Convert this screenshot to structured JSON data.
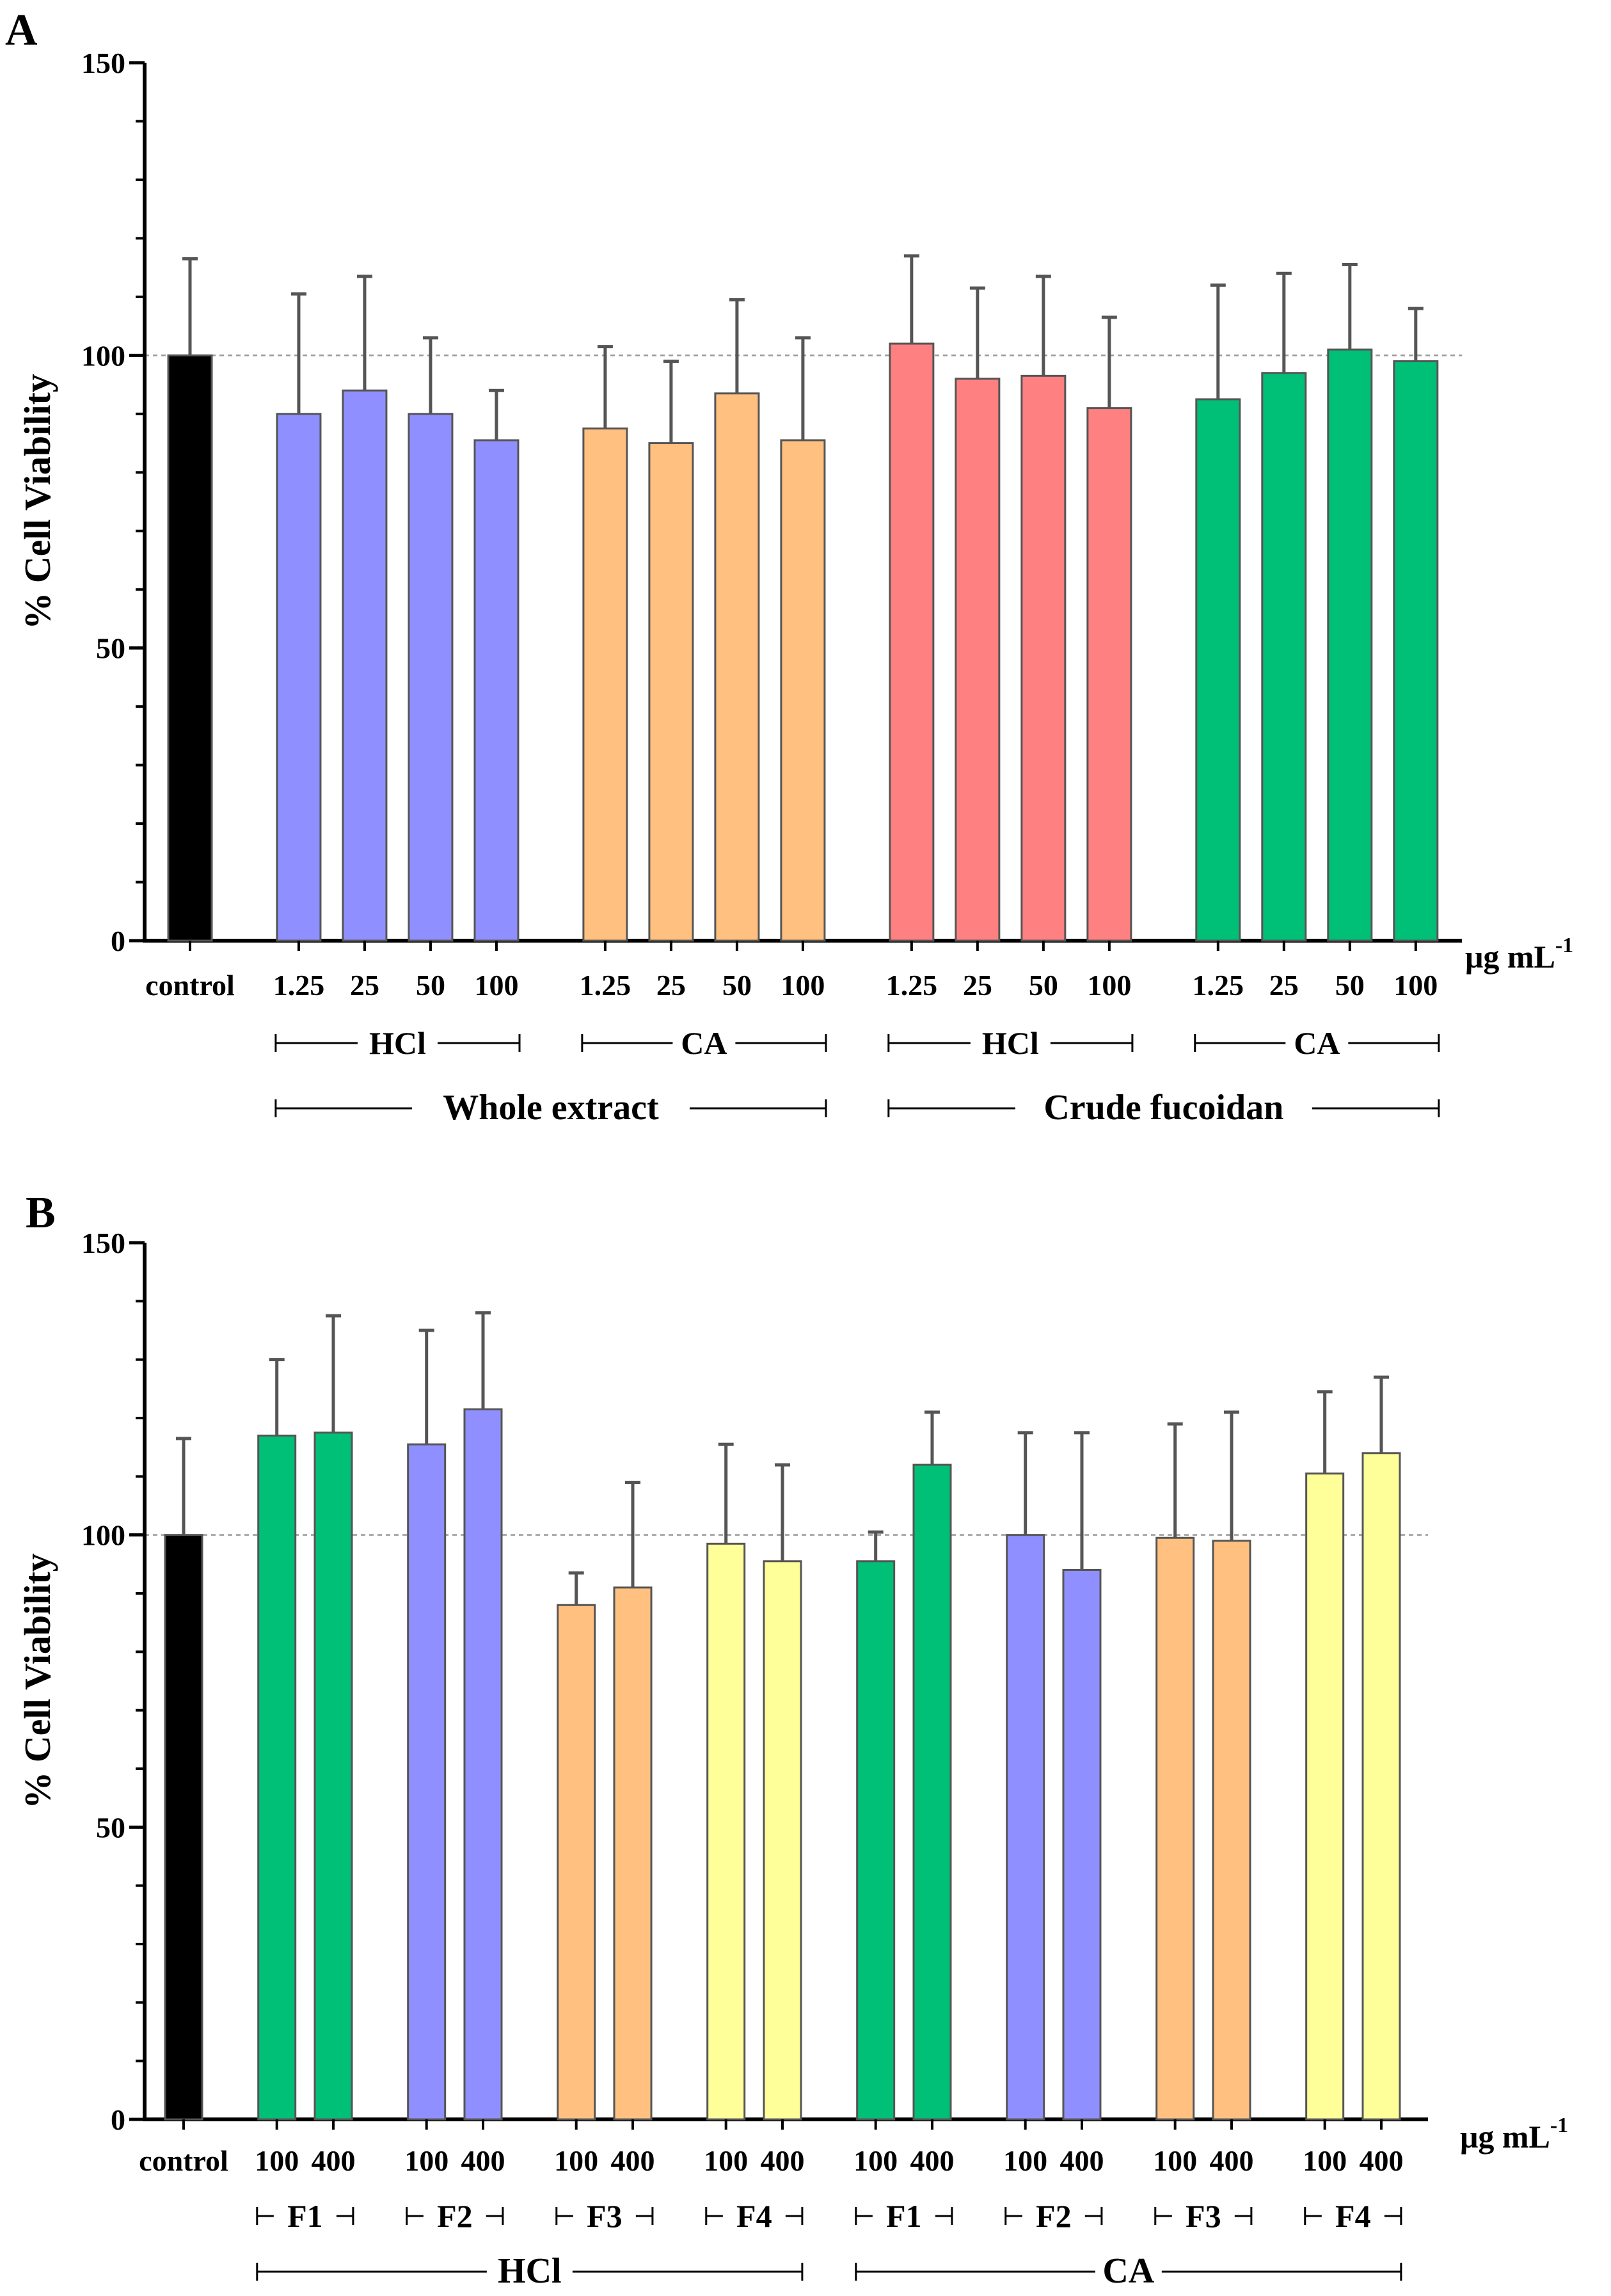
{
  "colors": {
    "black": "#000000",
    "blue": "#8F8FFF",
    "orange": "#FFC080",
    "red": "#FF8080",
    "green": "#00BF77",
    "yellow": "#FFFF99",
    "bar_edge": "#555555",
    "error_bar": "#555555",
    "reference_line": "#999999"
  },
  "chart_data": [
    {
      "panel": "A",
      "type": "bar",
      "ylabel": "% Cell Viability",
      "unit_label": "μg mL",
      "unit_superscript": "-1",
      "ylim": [
        0,
        150
      ],
      "yticks": [
        0,
        50,
        100,
        150
      ],
      "reference_line": 100,
      "bars": [
        {
          "label": "control",
          "value": 100,
          "error": 16.5,
          "color": "black",
          "slot": 0
        },
        {
          "label": "1.25",
          "value": 90,
          "error": 20.5,
          "color": "blue",
          "slot": 1.65
        },
        {
          "label": "25",
          "value": 94,
          "error": 19.5,
          "color": "blue",
          "slot": 2.65
        },
        {
          "label": "50",
          "value": 90,
          "error": 13,
          "color": "blue",
          "slot": 3.65
        },
        {
          "label": "100",
          "value": 85.5,
          "error": 8.5,
          "color": "blue",
          "slot": 4.65
        },
        {
          "label": "1.25",
          "value": 87.5,
          "error": 14,
          "color": "orange",
          "slot": 6.3
        },
        {
          "label": "25",
          "value": 85,
          "error": 14,
          "color": "orange",
          "slot": 7.3
        },
        {
          "label": "50",
          "value": 93.5,
          "error": 16,
          "color": "orange",
          "slot": 8.3
        },
        {
          "label": "100",
          "value": 85.5,
          "error": 17.5,
          "color": "orange",
          "slot": 9.3
        },
        {
          "label": "1.25",
          "value": 102,
          "error": 15,
          "color": "red",
          "slot": 10.95
        },
        {
          "label": "25",
          "value": 96,
          "error": 15.5,
          "color": "red",
          "slot": 11.95
        },
        {
          "label": "50",
          "value": 96.5,
          "error": 17,
          "color": "red",
          "slot": 12.95
        },
        {
          "label": "100",
          "value": 91,
          "error": 15.5,
          "color": "red",
          "slot": 13.95
        },
        {
          "label": "1.25",
          "value": 92.5,
          "error": 19.5,
          "color": "green",
          "slot": 15.6
        },
        {
          "label": "25",
          "value": 97,
          "error": 17,
          "color": "green",
          "slot": 16.6
        },
        {
          "label": "50",
          "value": 101,
          "error": 14.5,
          "color": "green",
          "slot": 17.6
        },
        {
          "label": "100",
          "value": 99,
          "error": 9,
          "color": "green",
          "slot": 18.6
        }
      ],
      "groups": [
        {
          "label": "HCl",
          "level": 1,
          "from_slot": 1.3,
          "to_slot": 5.0
        },
        {
          "label": "CA",
          "level": 1,
          "from_slot": 5.95,
          "to_slot": 9.65
        },
        {
          "label": "HCl",
          "level": 1,
          "from_slot": 10.6,
          "to_slot": 14.3
        },
        {
          "label": "CA",
          "level": 1,
          "from_slot": 15.25,
          "to_slot": 18.95
        },
        {
          "label": "Whole extract",
          "level": 2,
          "from_slot": 1.3,
          "to_slot": 9.65
        },
        {
          "label": "Crude fucoidan",
          "level": 2,
          "from_slot": 10.6,
          "to_slot": 18.95
        }
      ]
    },
    {
      "panel": "B",
      "type": "bar",
      "ylabel": "% Cell Viability",
      "unit_label": "μg mL",
      "unit_superscript": "-1",
      "ylim": [
        0,
        150
      ],
      "yticks": [
        0,
        50,
        100,
        150
      ],
      "reference_line": 100,
      "bars": [
        {
          "label": "control",
          "value": 100,
          "error": 16.5,
          "color": "black",
          "slot": 0
        },
        {
          "label": "100",
          "value": 117,
          "error": 13,
          "color": "green",
          "slot": 1.65
        },
        {
          "label": "400",
          "value": 117.5,
          "error": 20,
          "color": "green",
          "slot": 2.65
        },
        {
          "label": "100",
          "value": 115.5,
          "error": 19.5,
          "color": "blue",
          "slot": 4.3
        },
        {
          "label": "400",
          "value": 121.5,
          "error": 16.5,
          "color": "blue",
          "slot": 5.3
        },
        {
          "label": "100",
          "value": 88,
          "error": 5.5,
          "color": "orange",
          "slot": 6.95
        },
        {
          "label": "400",
          "value": 91,
          "error": 18,
          "color": "orange",
          "slot": 7.95
        },
        {
          "label": "100",
          "value": 98.5,
          "error": 17,
          "color": "yellow",
          "slot": 9.6
        },
        {
          "label": "400",
          "value": 95.5,
          "error": 16.5,
          "color": "yellow",
          "slot": 10.6
        },
        {
          "label": "100",
          "value": 95.5,
          "error": 5,
          "color": "green",
          "slot": 12.25
        },
        {
          "label": "400",
          "value": 112,
          "error": 9,
          "color": "green",
          "slot": 13.25
        },
        {
          "label": "100",
          "value": 100,
          "error": 17.5,
          "color": "blue",
          "slot": 14.9
        },
        {
          "label": "400",
          "value": 94,
          "error": 23.5,
          "color": "blue",
          "slot": 15.9
        },
        {
          "label": "100",
          "value": 99.5,
          "error": 19.5,
          "color": "orange",
          "slot": 17.55
        },
        {
          "label": "400",
          "value": 99,
          "error": 22,
          "color": "orange",
          "slot": 18.55
        },
        {
          "label": "100",
          "value": 110.5,
          "error": 14,
          "color": "yellow",
          "slot": 20.2
        },
        {
          "label": "400",
          "value": 114,
          "error": 13,
          "color": "yellow",
          "slot": 21.2
        }
      ],
      "groups": [
        {
          "label": "F1",
          "level": 1,
          "from_slot": 1.3,
          "to_slot": 3.0
        },
        {
          "label": "F2",
          "level": 1,
          "from_slot": 3.95,
          "to_slot": 5.65
        },
        {
          "label": "F3",
          "level": 1,
          "from_slot": 6.6,
          "to_slot": 8.3
        },
        {
          "label": "F4",
          "level": 1,
          "from_slot": 9.25,
          "to_slot": 10.95
        },
        {
          "label": "F1",
          "level": 1,
          "from_slot": 11.9,
          "to_slot": 13.6
        },
        {
          "label": "F2",
          "level": 1,
          "from_slot": 14.55,
          "to_slot": 16.25
        },
        {
          "label": "F3",
          "level": 1,
          "from_slot": 17.2,
          "to_slot": 18.9
        },
        {
          "label": "F4",
          "level": 1,
          "from_slot": 19.85,
          "to_slot": 21.55
        },
        {
          "label": "HCl",
          "level": 2,
          "from_slot": 1.3,
          "to_slot": 10.95
        },
        {
          "label": "CA",
          "level": 2,
          "from_slot": 11.9,
          "to_slot": 21.55
        }
      ]
    }
  ]
}
